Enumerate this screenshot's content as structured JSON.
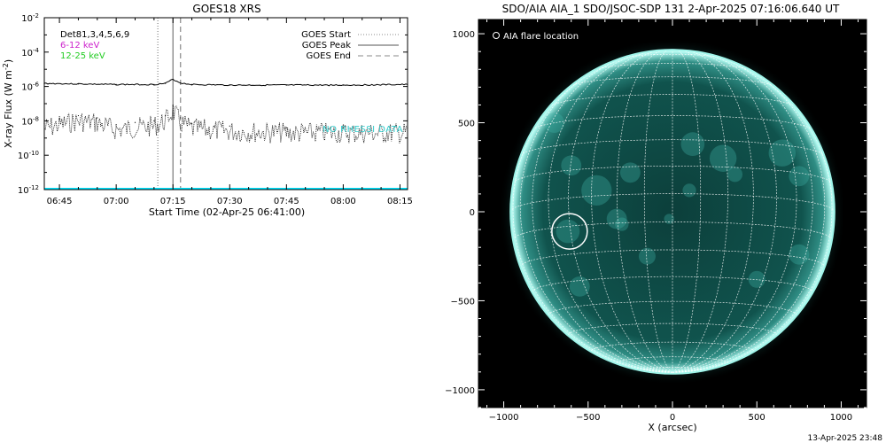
{
  "chart_data": [
    {
      "type": "line",
      "title": "GOES18 XRS",
      "ylabel": "X-ray Flux (W m",
      "ylabel_sup": "-2",
      "ylabel_close": ")",
      "xlabel": "Start Time (02-Apr-25 06:41:00)",
      "y_scale": "log",
      "ylim": [
        1e-12,
        0.01
      ],
      "y_ticks": [
        {
          "value": 0.01,
          "base": "10",
          "exp": "-2"
        },
        {
          "value": 0.0001,
          "base": "10",
          "exp": "-4"
        },
        {
          "value": 1e-06,
          "base": "10",
          "exp": "-6"
        },
        {
          "value": 1e-08,
          "base": "10",
          "exp": "-8"
        },
        {
          "value": 1e-10,
          "base": "10",
          "exp": "-10"
        },
        {
          "value": 1e-12,
          "base": "10",
          "exp": "-12"
        }
      ],
      "xlim": [
        "06:41",
        "08:17"
      ],
      "x_ticks": [
        "06:45",
        "07:00",
        "07:15",
        "07:30",
        "07:45",
        "08:00",
        "08:15"
      ],
      "vertical_markers": [
        {
          "name": "GOES Start",
          "time": "07:11",
          "style": "dotted"
        },
        {
          "name": "GOES Peak",
          "time": "07:15",
          "style": "solid"
        },
        {
          "name": "GOES End",
          "time": "07:17",
          "style": "dashed"
        }
      ],
      "legend_left": [
        {
          "text": "Det81,3,4,5,6,9",
          "color": "#000000"
        },
        {
          "text": "6-12 keV",
          "color": "#cc22cc"
        },
        {
          "text": "12-25 keV",
          "color": "#22cc22"
        }
      ],
      "legend_right": [
        {
          "text": "GOES Start",
          "style": "dotted"
        },
        {
          "text": "GOES Peak",
          "style": "solid"
        },
        {
          "text": "GOES End",
          "style": "dashed"
        }
      ],
      "overlay_text": "NO RHESSI DATA",
      "overlay_color": "#33cccc",
      "series": [
        {
          "style": "solid",
          "color": "#000000",
          "x": [
            "06:41",
            "06:50",
            "07:00",
            "07:10",
            "07:13",
            "07:15",
            "07:17",
            "07:20",
            "07:30",
            "07:45",
            "08:00",
            "08:17"
          ],
          "y": [
            1.5e-06,
            1.4e-06,
            1.3e-06,
            1.3e-06,
            1.5e-06,
            2.6e-06,
            1.6e-06,
            1.3e-06,
            1.2e-06,
            1.2e-06,
            1.2e-06,
            1.3e-06
          ]
        },
        {
          "style": "dotted",
          "color": "#000000",
          "x": [
            "06:41",
            "06:45",
            "06:50",
            "06:55",
            "07:00",
            "07:05",
            "07:10",
            "07:13",
            "07:15",
            "07:17",
            "07:20",
            "07:30",
            "07:45",
            "08:00",
            "08:17"
          ],
          "y": [
            7e-09,
            1.2e-08,
            2e-08,
            1.5e-08,
            6e-09,
            8e-09,
            1e-08,
            2e-08,
            8e-08,
            1.5e-08,
            7e-09,
            5e-09,
            4e-09,
            4e-09,
            4e-09
          ]
        }
      ],
      "floor_level": 1e-12,
      "floor_color": "#00e5ff"
    },
    {
      "type": "image",
      "title": "SDO/AIA AIA_1 SDO/JSOC-SDP 131  2-Apr-2025 07:16:06.640 UT",
      "xlabel": "X (arcsec)",
      "ylabel": "",
      "xlim": [
        -1150,
        1150
      ],
      "ylim": [
        -1100,
        1080
      ],
      "x_ticks": [
        -1000,
        -500,
        0,
        500,
        1000
      ],
      "y_ticks": [
        -1000,
        -500,
        0,
        500,
        1000
      ],
      "x_tick_labels": [
        "−1000",
        "−500",
        "0",
        "500",
        "1000"
      ],
      "y_tick_labels": [
        "−1000",
        "−500",
        "0",
        "500",
        "1000"
      ],
      "solar_radius_arcsec": 960,
      "grid_spacing_deg": 10,
      "disk_color": "#0e4a45",
      "limb_color": "#9ff5ea",
      "background": "#000000",
      "legend_text": "AIA flare location",
      "flare_location": {
        "x": -610,
        "y": -110,
        "radius": 105
      },
      "timestamp": "13-Apr-2025 23:48"
    }
  ]
}
